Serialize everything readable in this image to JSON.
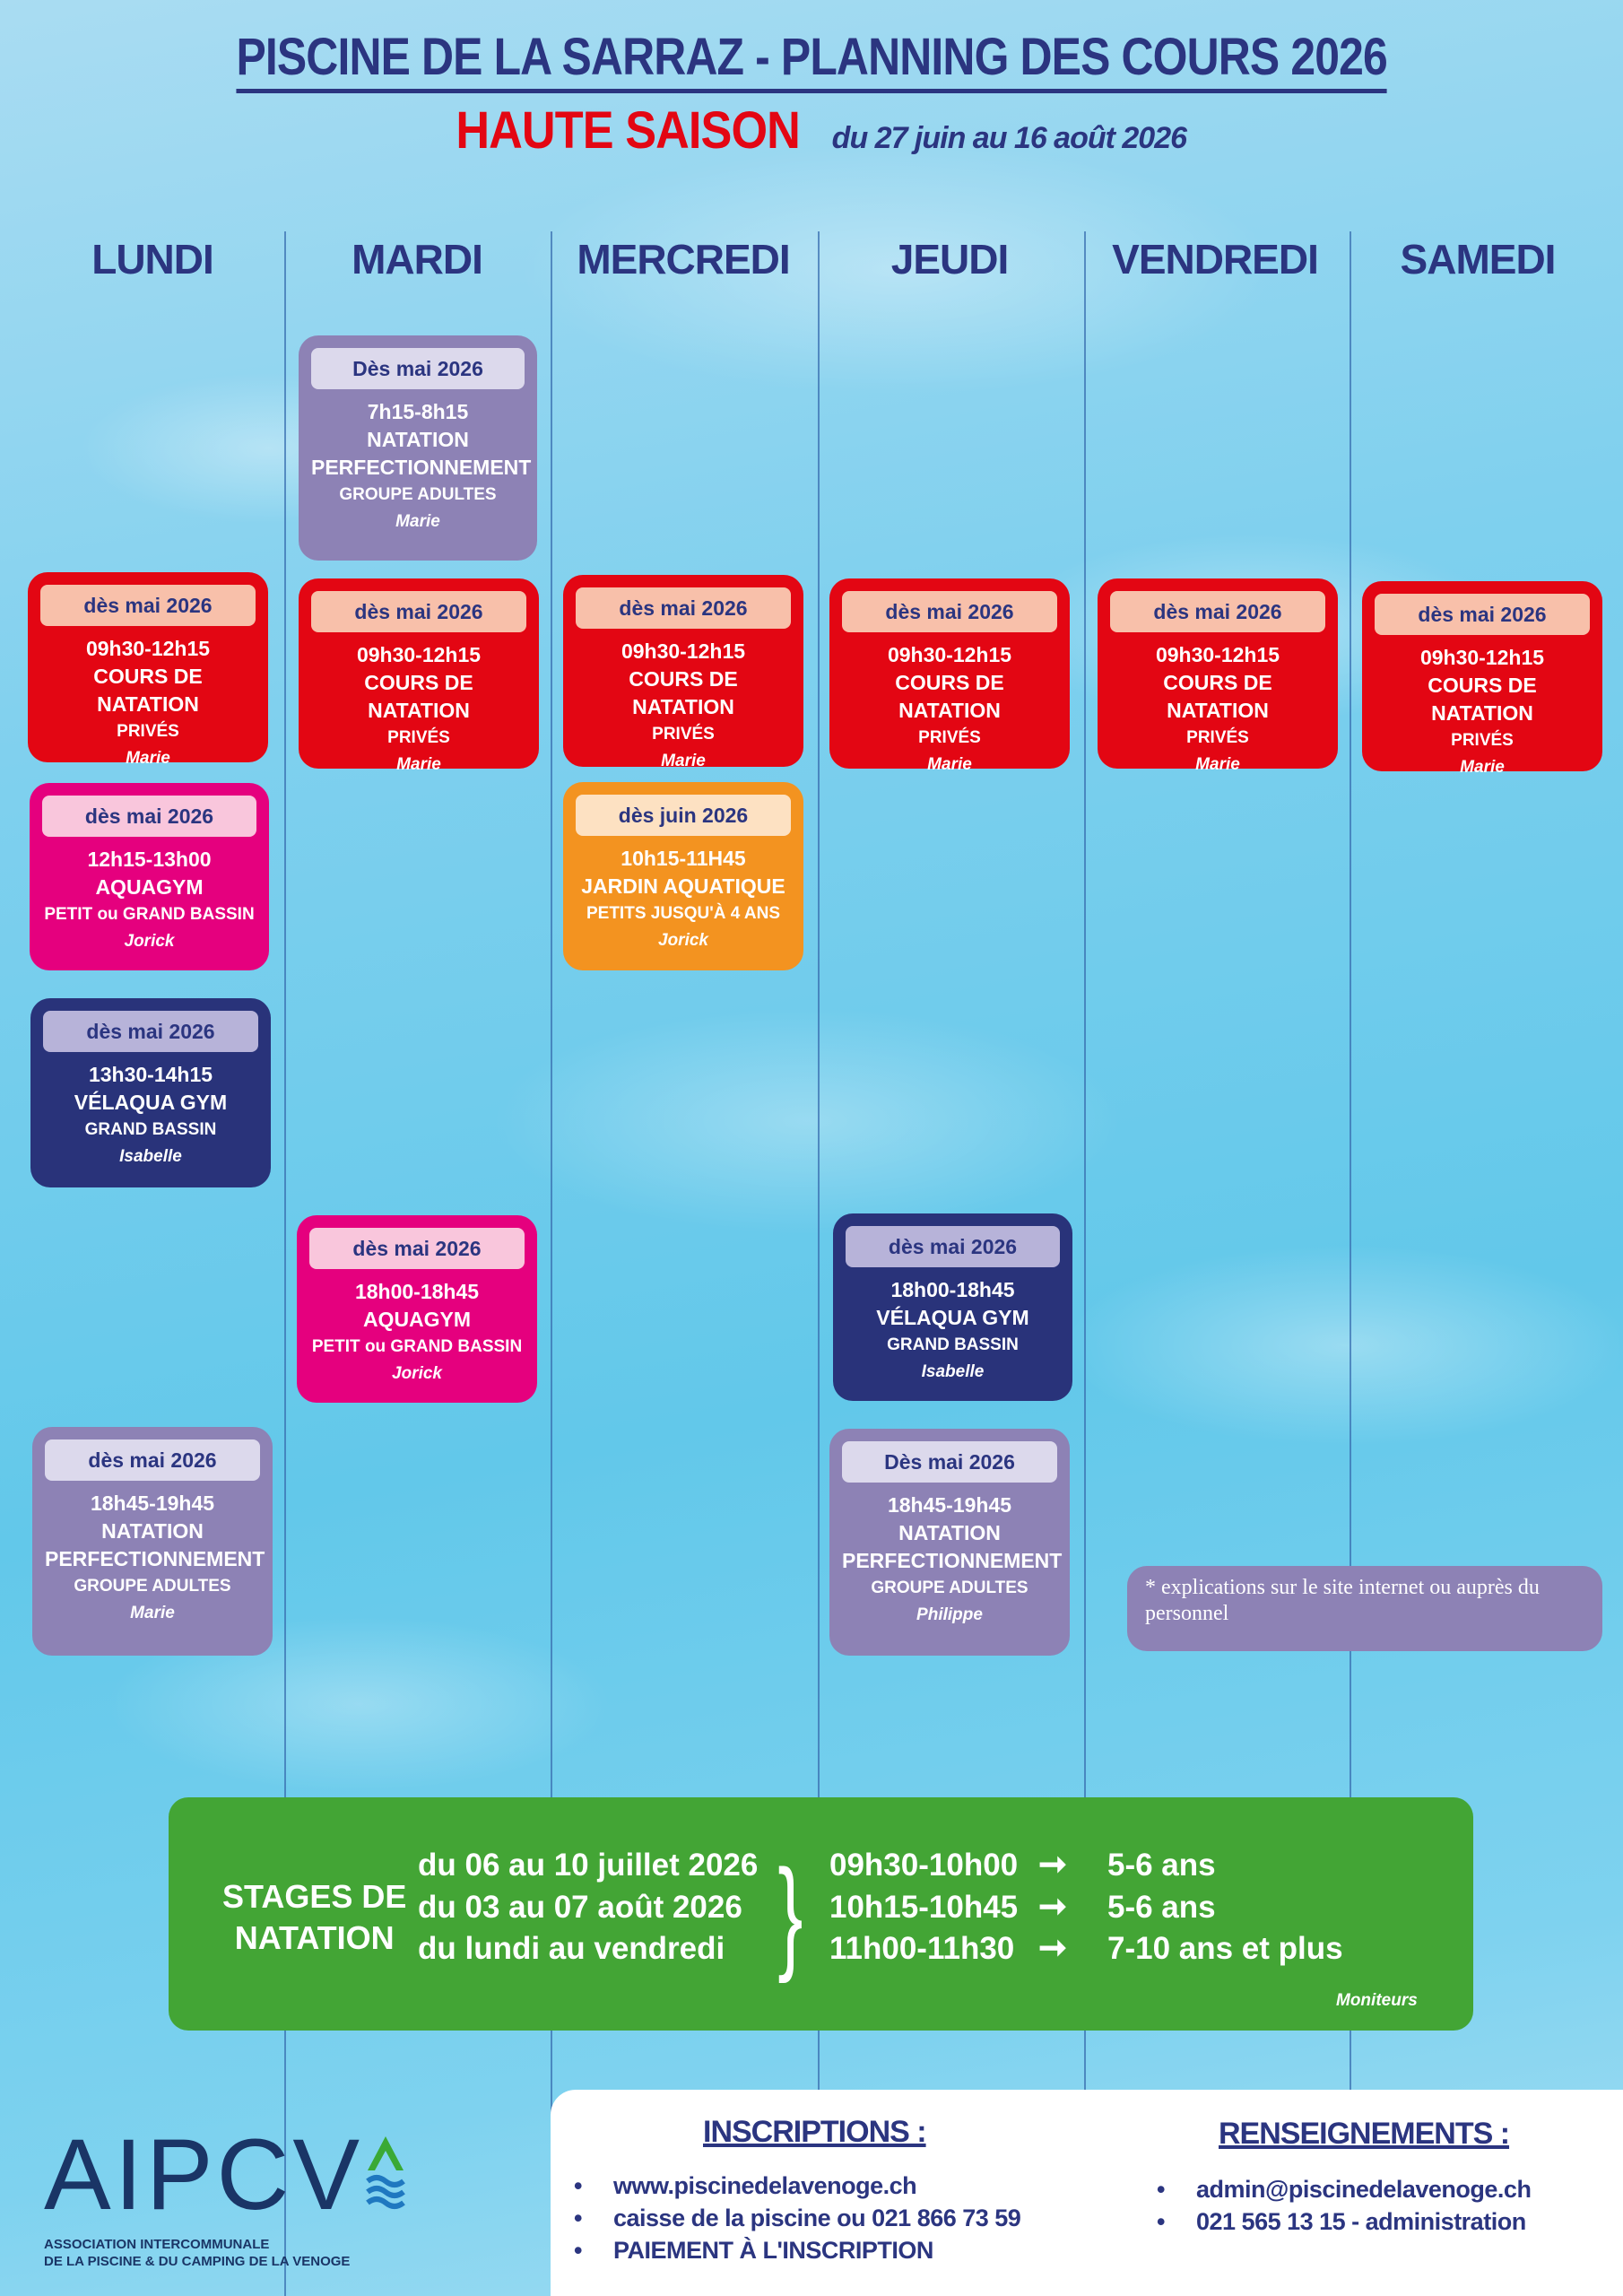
{
  "header": {
    "title": "PISCINE DE LA SARRAZ - PLANNING DES COURS 2026",
    "season": "HAUTE SAISON",
    "period": "du 27 juin au 16 août 2026"
  },
  "days": [
    "LUNDI",
    "MARDI",
    "MERCREDI",
    "JEUDI",
    "VENDREDI",
    "SAMEDI"
  ],
  "colors": {
    "red": "#e30613",
    "pink": "#e5007e",
    "purple": "#8d82b5",
    "navy": "#29337a",
    "orange": "#f39320",
    "green": "#43a535",
    "text_navy": "#2b3580"
  },
  "cards": [
    {
      "day": "MARDI",
      "color": "purple",
      "badge": "Dès mai 2026",
      "time": "7h15-8h15",
      "title": [
        "NATATION",
        "PERFECTIONNEMENT"
      ],
      "sub": "GROUPE ADULTES",
      "instructor": "Marie"
    },
    {
      "day": "LUNDI",
      "color": "red",
      "badge": "dès mai 2026",
      "time": "09h30-12h15",
      "title": [
        "COURS DE NATATION"
      ],
      "sub": "PRIVÉS",
      "instructor": "Marie"
    },
    {
      "day": "MARDI",
      "color": "red",
      "badge": "dès mai 2026",
      "time": "09h30-12h15",
      "title": [
        "COURS DE NATATION"
      ],
      "sub": "PRIVÉS",
      "instructor": "Marie"
    },
    {
      "day": "MERCREDI",
      "color": "red",
      "badge": "dès mai 2026",
      "time": "09h30-12h15",
      "title": [
        "COURS DE NATATION"
      ],
      "sub": "PRIVÉS",
      "instructor": "Marie"
    },
    {
      "day": "JEUDI",
      "color": "red",
      "badge": "dès mai 2026",
      "time": "09h30-12h15",
      "title": [
        "COURS DE NATATION"
      ],
      "sub": "PRIVÉS",
      "instructor": "Marie"
    },
    {
      "day": "VENDREDI",
      "color": "red",
      "badge": "dès mai 2026",
      "time": "09h30-12h15",
      "title": [
        "COURS DE NATATION"
      ],
      "sub": "PRIVÉS",
      "instructor": "Marie"
    },
    {
      "day": "SAMEDI",
      "color": "red",
      "badge": "dès mai 2026",
      "time": "09h30-12h15",
      "title": [
        "COURS DE NATATION"
      ],
      "sub": "PRIVÉS",
      "instructor": "Marie"
    },
    {
      "day": "LUNDI",
      "color": "pink",
      "badge": "dès mai 2026",
      "time": "12h15-13h00",
      "title": [
        "AQUAGYM"
      ],
      "sub": "PETIT  ou GRAND BASSIN",
      "instructor": "Jorick"
    },
    {
      "day": "MERCREDI",
      "color": "orange",
      "badge": "dès juin 2026",
      "time": "10h15-11H45",
      "title": [
        "JARDIN AQUATIQUE"
      ],
      "sub": "PETITS JUSQU'À 4 ANS",
      "instructor": "Jorick"
    },
    {
      "day": "LUNDI",
      "color": "navy",
      "badge": "dès mai 2026",
      "time": "13h30-14h15",
      "title": [
        "VÉLAQUA GYM"
      ],
      "sub": "GRAND BASSIN",
      "instructor": "Isabelle"
    },
    {
      "day": "MARDI",
      "color": "pink",
      "badge": "dès mai 2026",
      "time": "18h00-18h45",
      "title": [
        "AQUAGYM"
      ],
      "sub": "PETIT  ou GRAND BASSIN",
      "instructor": "Jorick"
    },
    {
      "day": "JEUDI",
      "color": "navy",
      "badge": "dès mai 2026",
      "time": "18h00-18h45",
      "title": [
        "VÉLAQUA GYM"
      ],
      "sub": "GRAND BASSIN",
      "instructor": "Isabelle"
    },
    {
      "day": "LUNDI",
      "color": "purple",
      "badge": "dès mai 2026",
      "time": "18h45-19h45",
      "title": [
        "NATATION",
        "PERFECTIONNEMENT"
      ],
      "sub": "GROUPE ADULTES",
      "instructor": "Marie"
    },
    {
      "day": "JEUDI",
      "color": "purple",
      "badge": "Dès mai 2026",
      "time": "18h45-19h45",
      "title": [
        "NATATION",
        "PERFECTIONNEMENT"
      ],
      "sub": "GROUPE ADULTES",
      "instructor": "Philippe"
    }
  ],
  "note": "* explications sur le site internet ou auprès du personnel",
  "stages": {
    "label_line1": "STAGES DE",
    "label_line2": "NATATION",
    "dates": [
      "du 06 au 10 juillet 2026",
      "du 03 au 07 août 2026",
      "du lundi au vendredi"
    ],
    "slots": [
      {
        "time": "09h30-10h00",
        "age": "5-6 ans"
      },
      {
        "time": "10h15-10h45",
        "age": "5-6 ans"
      },
      {
        "time": "11h00-11h30",
        "age": "7-10 ans et plus"
      }
    ],
    "staff": "Moniteurs"
  },
  "footer": {
    "inscriptions_title": "INSCRIPTIONS :",
    "inscriptions": [
      "www.piscinedelavenoge.ch",
      "caisse de la piscine ou 021 866 73 59",
      "PAIEMENT À L'INSCRIPTION"
    ],
    "renseignements_title": "RENSEIGNEMENTS :",
    "renseignements": [
      "admin@piscinedelavenoge.ch",
      "021 565 13 15 - administration"
    ]
  },
  "logo": {
    "text": "AIPCV",
    "line1": "ASSOCIATION INTERCOMMUNALE",
    "line2": "DE LA PISCINE & DU CAMPING DE LA VENOGE"
  }
}
